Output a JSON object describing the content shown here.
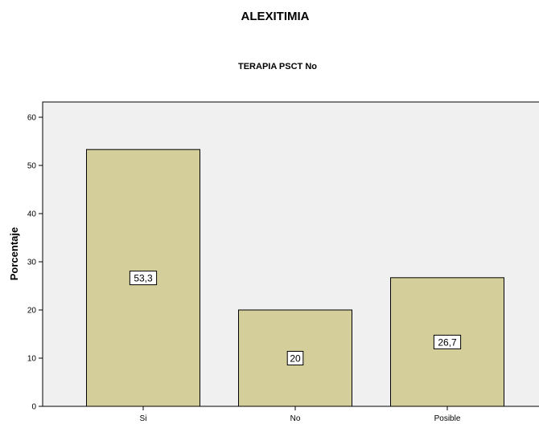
{
  "chart_data": {
    "type": "bar",
    "title": "ALEXITIMIA",
    "subtitle": "TERAPIA PSCT  No",
    "xlabel": "",
    "ylabel": "Porcentaje",
    "categories": [
      "Si",
      "No",
      "Posible"
    ],
    "values": [
      53.3,
      20,
      26.7
    ],
    "data_labels": [
      "53,3",
      "20",
      "26,7"
    ],
    "ylim": [
      0,
      63
    ],
    "yticks": [
      0,
      10,
      20,
      30,
      40,
      50,
      60
    ],
    "bar_color": "#d3ce9a",
    "plot_background": "#f0f0f0",
    "grid": false,
    "legend": "none"
  }
}
